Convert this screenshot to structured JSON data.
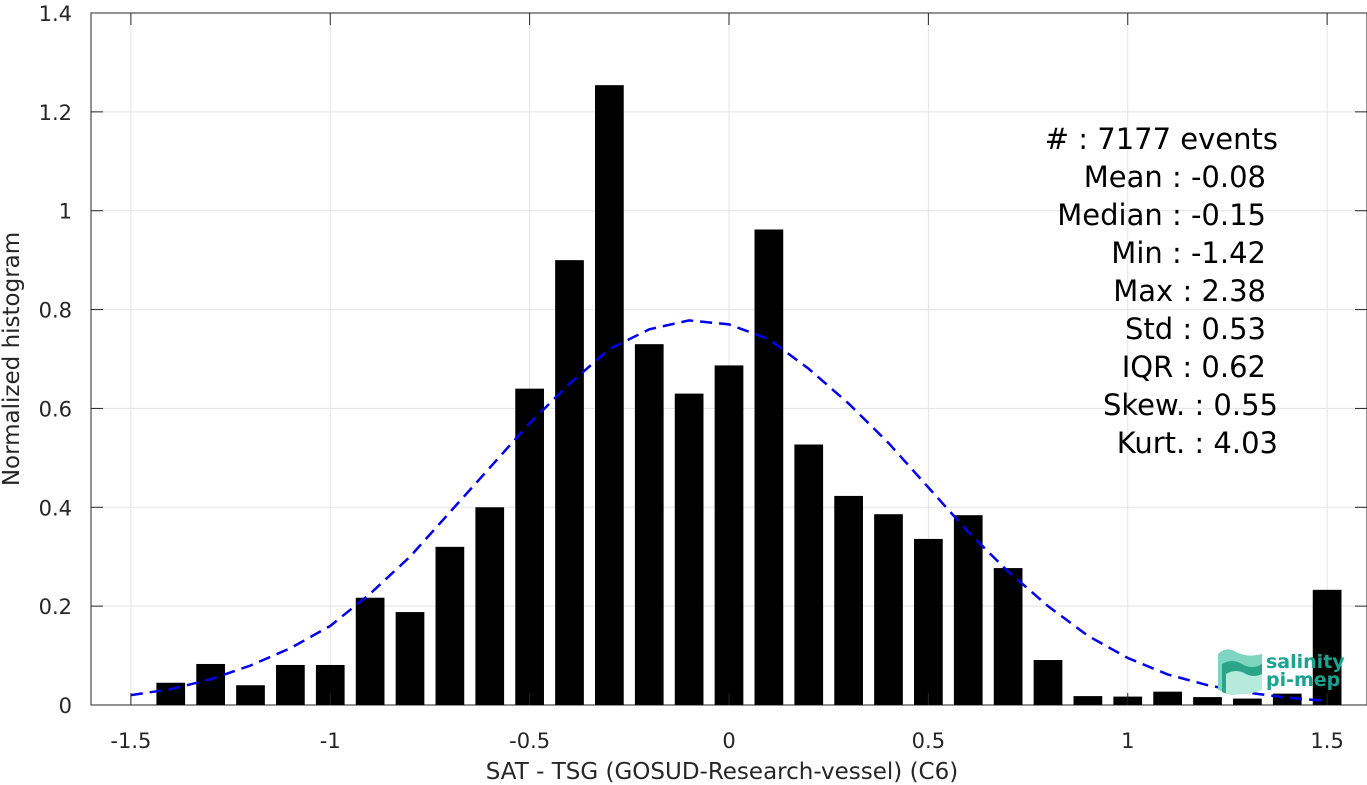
{
  "chart_data": {
    "type": "bar",
    "xlabel": "SAT - TSG (GOSUD-Research-vessel) (C6)",
    "ylabel": "Normalized histogram",
    "xlim": [
      -1.6,
      1.6
    ],
    "ylim": [
      0,
      1.4
    ],
    "xticks": [
      -1.5,
      -1,
      -0.5,
      0,
      0.5,
      1,
      1.5
    ],
    "xtick_labels": [
      "-1.5",
      "-1",
      "-0.5",
      "0",
      "0.5",
      "1",
      "1.5"
    ],
    "yticks": [
      0,
      0.2,
      0.4,
      0.6,
      0.8,
      1,
      1.2,
      1.4
    ],
    "ytick_labels": [
      "0",
      "0.2",
      "0.4",
      "0.6",
      "0.8",
      "1",
      "1.2",
      "1.4"
    ],
    "grid": true,
    "bar_width": 0.072,
    "bar_color": "#000000",
    "x": [
      -1.4,
      -1.3,
      -1.2,
      -1.1,
      -1.0,
      -0.9,
      -0.8,
      -0.7,
      -0.6,
      -0.5,
      -0.4,
      -0.3,
      -0.2,
      -0.1,
      0.0,
      0.1,
      0.2,
      0.3,
      0.4,
      0.5,
      0.6,
      0.7,
      0.8,
      0.9,
      1.0,
      1.1,
      1.2,
      1.3,
      1.4,
      1.5
    ],
    "values": [
      0.045,
      0.083,
      0.04,
      0.081,
      0.081,
      0.217,
      0.188,
      0.32,
      0.4,
      0.64,
      0.9,
      1.254,
      0.73,
      0.63,
      0.687,
      0.962,
      0.527,
      0.423,
      0.386,
      0.336,
      0.384,
      0.277,
      0.091,
      0.018,
      0.017,
      0.027,
      0.016,
      0.013,
      0.023,
      0.233
    ],
    "fit_curve": {
      "color": "#0000ee",
      "style": "dashed",
      "x": [
        -1.5,
        -1.4,
        -1.3,
        -1.2,
        -1.1,
        -1.0,
        -0.9,
        -0.8,
        -0.7,
        -0.6,
        -0.5,
        -0.4,
        -0.3,
        -0.2,
        -0.1,
        0.0,
        0.1,
        0.2,
        0.3,
        0.4,
        0.5,
        0.6,
        0.7,
        0.8,
        0.9,
        1.0,
        1.1,
        1.2,
        1.3,
        1.4,
        1.5
      ],
      "y": [
        0.02,
        0.032,
        0.052,
        0.08,
        0.115,
        0.16,
        0.225,
        0.3,
        0.39,
        0.48,
        0.57,
        0.65,
        0.72,
        0.76,
        0.778,
        0.77,
        0.74,
        0.68,
        0.61,
        0.53,
        0.44,
        0.35,
        0.27,
        0.2,
        0.14,
        0.095,
        0.062,
        0.04,
        0.025,
        0.015,
        0.008
      ]
    },
    "stats": [
      "#  : 7177 events",
      "Mean : -0.08",
      "Median : -0.15",
      "Min : -1.42",
      "Max : 2.38",
      "Std : 0.53",
      "IQR : 0.62",
      "Skew. : 0.55",
      "Kurt. : 4.03"
    ],
    "logo": {
      "line1": "salinity",
      "line2": "pi-mep"
    }
  }
}
